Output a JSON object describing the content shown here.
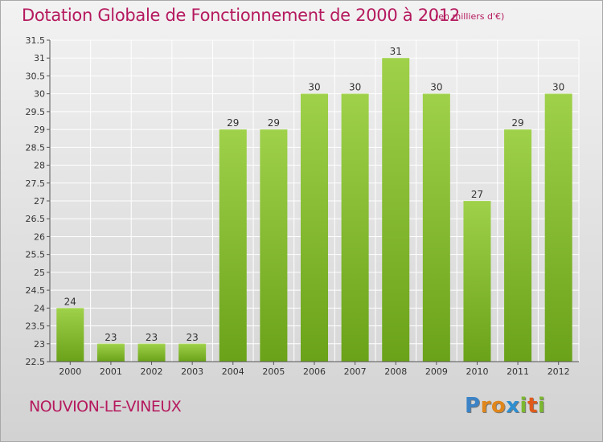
{
  "title": "Dotation Globale de Fonctionnement de 2000 à 2012",
  "unit": "(en milliers d'€)",
  "commune": "NOUVION-LE-VINEUX",
  "logo": {
    "letters": [
      "P",
      "r",
      "o",
      "x",
      "i",
      "t",
      "i"
    ],
    "colors": [
      "#3b83c6",
      "#e0861b",
      "#e0861b",
      "#2e8fd0",
      "#7cb82f",
      "#e05a1b",
      "#7cb82f"
    ]
  },
  "chart_data": {
    "type": "bar",
    "title": "Dotation Globale de Fonctionnement de 2000 à 2012",
    "xlabel": "",
    "ylabel": "",
    "categories": [
      "2000",
      "2001",
      "2002",
      "2003",
      "2004",
      "2005",
      "2006",
      "2007",
      "2008",
      "2009",
      "2010",
      "2011",
      "2012"
    ],
    "values": [
      24,
      23,
      23,
      23,
      29,
      29,
      30,
      30,
      31,
      30,
      27,
      29,
      30
    ],
    "value_labels": [
      "24",
      "23",
      "23",
      "23",
      "29",
      "29",
      "30",
      "30",
      "31",
      "30",
      "27",
      "29",
      "30"
    ],
    "ylim": [
      22.5,
      31.5
    ],
    "yticks": [
      22.5,
      23,
      23.5,
      24,
      24.5,
      25,
      25.5,
      26,
      26.5,
      27,
      27.5,
      28,
      28.5,
      29,
      29.5,
      30,
      30.5,
      31,
      31.5
    ],
    "ytick_labels": [
      "22.5",
      "23",
      "23.5",
      "24",
      "24.5",
      "25",
      "25.5",
      "26",
      "26.5",
      "27",
      "27.5",
      "28",
      "28.5",
      "29",
      "29.5",
      "30",
      "30.5",
      "31",
      "31.5"
    ],
    "grid": true,
    "colors": {
      "bar": "#8cc53a",
      "bar_dark": "#6aa219",
      "bar_light": "#a9d75a",
      "grid": "#ffffff",
      "axis": "#555555"
    }
  }
}
